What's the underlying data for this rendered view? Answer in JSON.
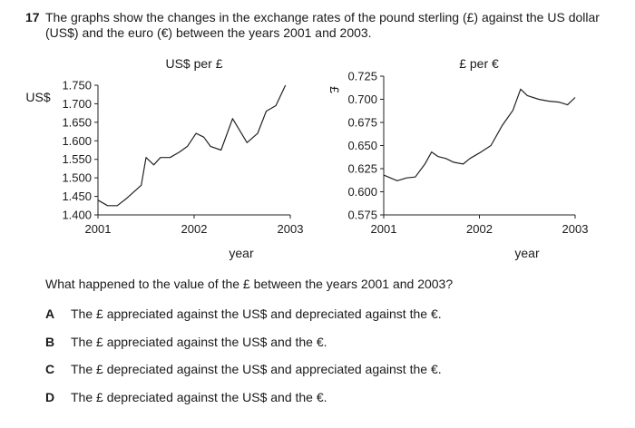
{
  "question": {
    "number": "17",
    "text": "The graphs show the changes in the exchange rates of the pound sterling (£) against the US dollar (US$) and the euro (€) between the years 2001 and 2003.",
    "ask": "What happened to the value of the £ between the years 2001 and 2003?",
    "options": [
      {
        "letter": "A",
        "text": "The £ appreciated against the US$ and depreciated against the €."
      },
      {
        "letter": "B",
        "text": "The £ appreciated against the US$ and the €."
      },
      {
        "letter": "C",
        "text": "The £ depreciated against the US$ and appreciated against the €."
      },
      {
        "letter": "D",
        "text": "The £ depreciated against the US$ and the €."
      }
    ]
  },
  "chart_data": [
    {
      "type": "line",
      "title": "US$ per £",
      "ylabel": "US$",
      "xlabel": "year",
      "xlim": [
        2001,
        2003
      ],
      "ylim": [
        1.4,
        1.75
      ],
      "xticks": [
        "2001",
        "2002",
        "2003"
      ],
      "yticks": [
        "1.400",
        "1.450",
        "1.500",
        "1.550",
        "1.600",
        "1.650",
        "1.700",
        "1.750"
      ],
      "grid": false,
      "x": [
        2001.0,
        2001.1,
        2001.2,
        2001.3,
        2001.45,
        2001.5,
        2001.58,
        2001.65,
        2001.75,
        2001.85,
        2001.93,
        2002.02,
        2002.1,
        2002.17,
        2002.28,
        2002.4,
        2002.55,
        2002.66,
        2002.75,
        2002.85,
        2002.95
      ],
      "values": [
        1.44,
        1.425,
        1.425,
        1.445,
        1.48,
        1.555,
        1.535,
        1.555,
        1.555,
        1.57,
        1.585,
        1.62,
        1.61,
        1.585,
        1.575,
        1.66,
        1.595,
        1.62,
        1.68,
        1.695,
        1.75
      ]
    },
    {
      "type": "line",
      "title": "£ per €",
      "ylabel": "£",
      "xlabel": "year",
      "xlim": [
        2001,
        2003
      ],
      "ylim": [
        0.575,
        0.725
      ],
      "xticks": [
        "2001",
        "2002",
        "2003"
      ],
      "yticks": [
        "0.575",
        "0.600",
        "0.625",
        "0.650",
        "0.675",
        "0.700",
        "0.725"
      ],
      "grid": false,
      "x": [
        2001.0,
        2001.14,
        2001.24,
        2001.33,
        2001.43,
        2001.5,
        2001.57,
        2001.65,
        2001.73,
        2001.83,
        2001.9,
        2002.0,
        2002.12,
        2002.24,
        2002.35,
        2002.43,
        2002.5,
        2002.62,
        2002.72,
        2002.83,
        2002.92,
        2003.0
      ],
      "values": [
        0.618,
        0.612,
        0.615,
        0.616,
        0.63,
        0.643,
        0.638,
        0.636,
        0.632,
        0.63,
        0.636,
        0.642,
        0.65,
        0.672,
        0.688,
        0.711,
        0.704,
        0.7,
        0.698,
        0.697,
        0.694,
        0.702
      ]
    }
  ]
}
